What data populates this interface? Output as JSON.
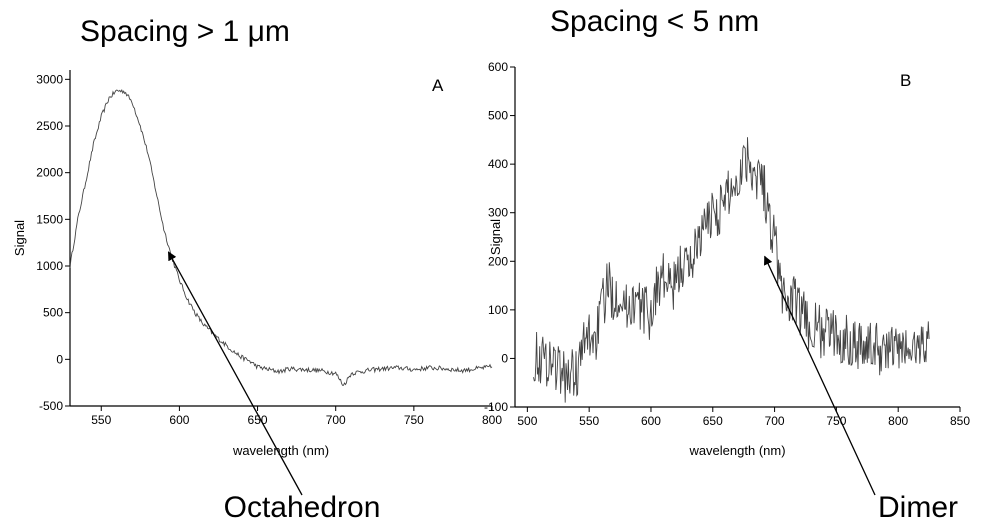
{
  "chart_data": [
    {
      "type": "line",
      "title": "Spacing > 1 μm",
      "panel_label": "A",
      "xlabel": "wavelength (nm)",
      "ylabel": "Signal",
      "xlim": [
        530,
        800
      ],
      "ylim": [
        -500,
        3100
      ],
      "xticks": [
        550,
        600,
        650,
        700,
        750,
        800
      ],
      "yticks": [
        -500,
        0,
        500,
        1000,
        1500,
        2000,
        2500,
        3000
      ],
      "annotation": {
        "text": "Octahedron",
        "arrow_tip": [
          593,
          1150
        ]
      },
      "noise": 25,
      "series": [
        {
          "x": [
            530,
            535,
            540,
            545,
            550,
            555,
            560,
            565,
            570,
            575,
            580,
            585,
            590,
            595,
            600,
            605,
            610,
            615,
            620,
            625,
            630,
            635,
            640,
            645,
            650,
            655,
            660,
            665,
            670,
            680,
            690,
            700,
            705,
            710,
            720,
            730,
            740,
            750,
            760,
            770,
            780,
            790,
            800
          ],
          "values": [
            1000,
            1500,
            1900,
            2300,
            2600,
            2800,
            2880,
            2870,
            2750,
            2500,
            2200,
            1800,
            1400,
            1100,
            850,
            650,
            500,
            380,
            300,
            220,
            150,
            80,
            20,
            -20,
            -80,
            -100,
            -120,
            -130,
            -100,
            -110,
            -120,
            -150,
            -280,
            -150,
            -120,
            -100,
            -90,
            -110,
            -90,
            -100,
            -120,
            -100,
            -80
          ]
        }
      ]
    },
    {
      "type": "line",
      "title": "Spacing < 5 nm",
      "panel_label": "B",
      "xlabel": "wavelength (nm)",
      "ylabel": "Signal",
      "xlim": [
        490,
        850
      ],
      "ylim": [
        -100,
        600
      ],
      "xticks": [
        500,
        550,
        600,
        650,
        700,
        750,
        800,
        850
      ],
      "yticks": [
        -100,
        0,
        100,
        200,
        300,
        400,
        500,
        600
      ],
      "annotation": {
        "text": "Dimer",
        "arrow_tip": [
          692,
          210
        ]
      },
      "noise": 55,
      "series": [
        {
          "x": [
            505,
            510,
            515,
            520,
            525,
            530,
            535,
            540,
            545,
            550,
            555,
            560,
            565,
            570,
            575,
            580,
            585,
            590,
            595,
            600,
            605,
            610,
            615,
            620,
            625,
            630,
            635,
            640,
            645,
            650,
            655,
            660,
            665,
            670,
            675,
            680,
            685,
            690,
            695,
            700,
            705,
            710,
            715,
            720,
            725,
            730,
            735,
            740,
            745,
            750,
            760,
            770,
            780,
            790,
            800,
            810,
            820,
            825
          ],
          "values": [
            5,
            0,
            -5,
            0,
            -20,
            -40,
            -30,
            -30,
            20,
            50,
            40,
            100,
            150,
            130,
            140,
            100,
            120,
            110,
            100,
            90,
            150,
            170,
            140,
            150,
            200,
            180,
            220,
            260,
            270,
            310,
            300,
            330,
            350,
            360,
            420,
            410,
            380,
            380,
            290,
            260,
            140,
            120,
            120,
            100,
            80,
            60,
            60,
            50,
            60,
            40,
            40,
            30,
            20,
            20,
            20,
            15,
            30,
            40
          ]
        }
      ]
    }
  ]
}
